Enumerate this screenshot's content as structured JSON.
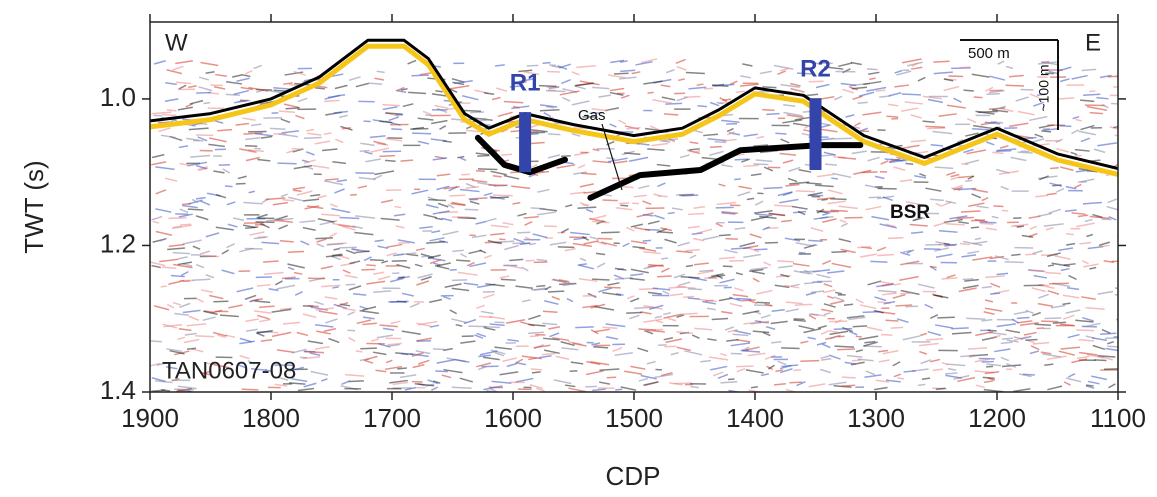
{
  "chart_data": {
    "type": "seismic",
    "xlabel": "CDP",
    "ylabel": "TWT (s)",
    "xlim": [
      1900,
      1100
    ],
    "xticks": [
      1900,
      1800,
      1700,
      1600,
      1500,
      1400,
      1300,
      1200,
      1100
    ],
    "ylim": [
      1.4,
      0.895
    ],
    "yticks": [
      {
        "value": 1,
        "label": "1.0"
      },
      1.2,
      1.4
    ],
    "lines": [
      {
        "color": "#000000",
        "x": [
          1900,
          1850,
          1800,
          1760,
          1720,
          1690,
          1670,
          1640,
          1620,
          1590,
          1550,
          1500,
          1460,
          1430,
          1400,
          1360,
          1310,
          1260,
          1200,
          1150,
          1100
        ],
        "values": [
          1.03,
          1.02,
          1.0,
          0.97,
          0.92,
          0.92,
          0.945,
          1.02,
          1.04,
          1.02,
          1.035,
          1.05,
          1.04,
          1.015,
          0.985,
          0.995,
          1.05,
          1.08,
          1.04,
          1.075,
          1.095
        ]
      },
      {
        "color": "#000000",
        "x": [
          1629,
          1607,
          1586,
          1557
        ],
        "values": [
          1.053,
          1.09,
          1.1,
          1.083
        ]
      },
      {
        "color": "#000000",
        "x": [
          1536,
          1495,
          1445,
          1412,
          1346,
          1313
        ],
        "values": [
          1.135,
          1.104,
          1.097,
          1.07,
          1.063,
          1.063
        ]
      }
    ],
    "markers": [
      {
        "label": "R1",
        "color": "#3344aa",
        "x": 1590,
        "values": [
          1.018,
          1.1
        ]
      },
      {
        "label": "R2",
        "color": "#3344aa",
        "x": 1350,
        "values": [
          0.999,
          1.097
        ]
      }
    ],
    "annotations": [
      "W",
      "E",
      "Gas",
      "BSR",
      "TAN0607-08",
      "500 m",
      "~100 m"
    ]
  }
}
